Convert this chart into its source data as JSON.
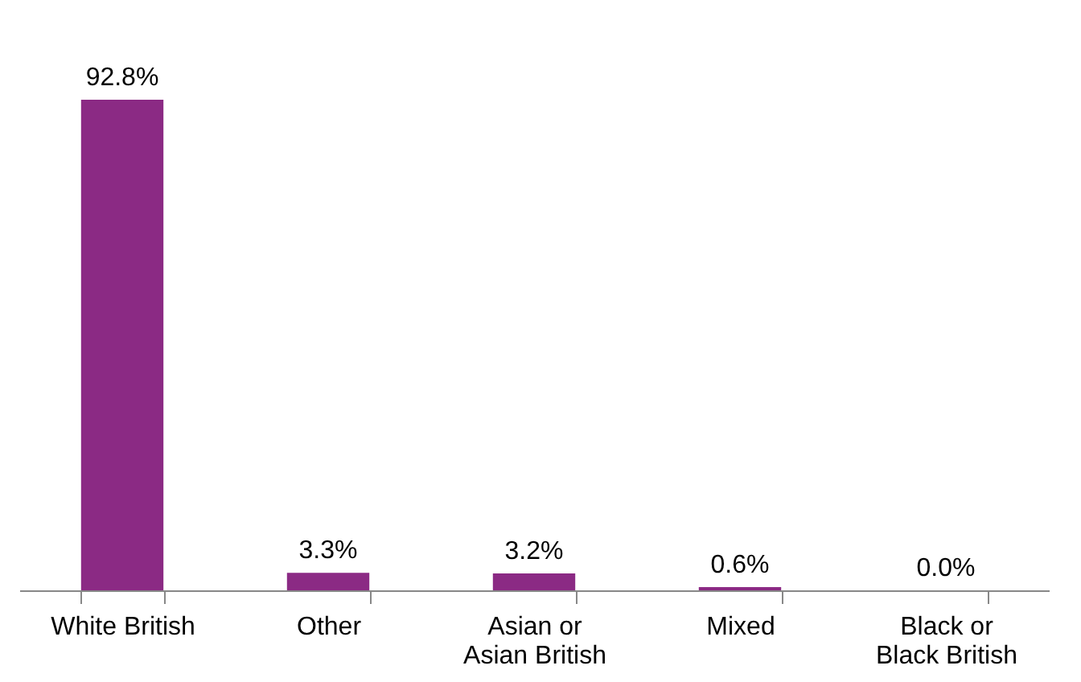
{
  "chart_data": {
    "type": "bar",
    "categories": [
      "White British",
      "Other",
      "Asian or\nAsian British",
      "Mixed",
      "Black or\nBlack British"
    ],
    "values": [
      92.8,
      3.3,
      3.2,
      0.6,
      0.0
    ],
    "color": "#8b2a84",
    "value_labels": [
      "92.8%",
      "3.3%",
      "3.2%",
      "0.6%",
      "0.0%"
    ],
    "grid": false
  }
}
